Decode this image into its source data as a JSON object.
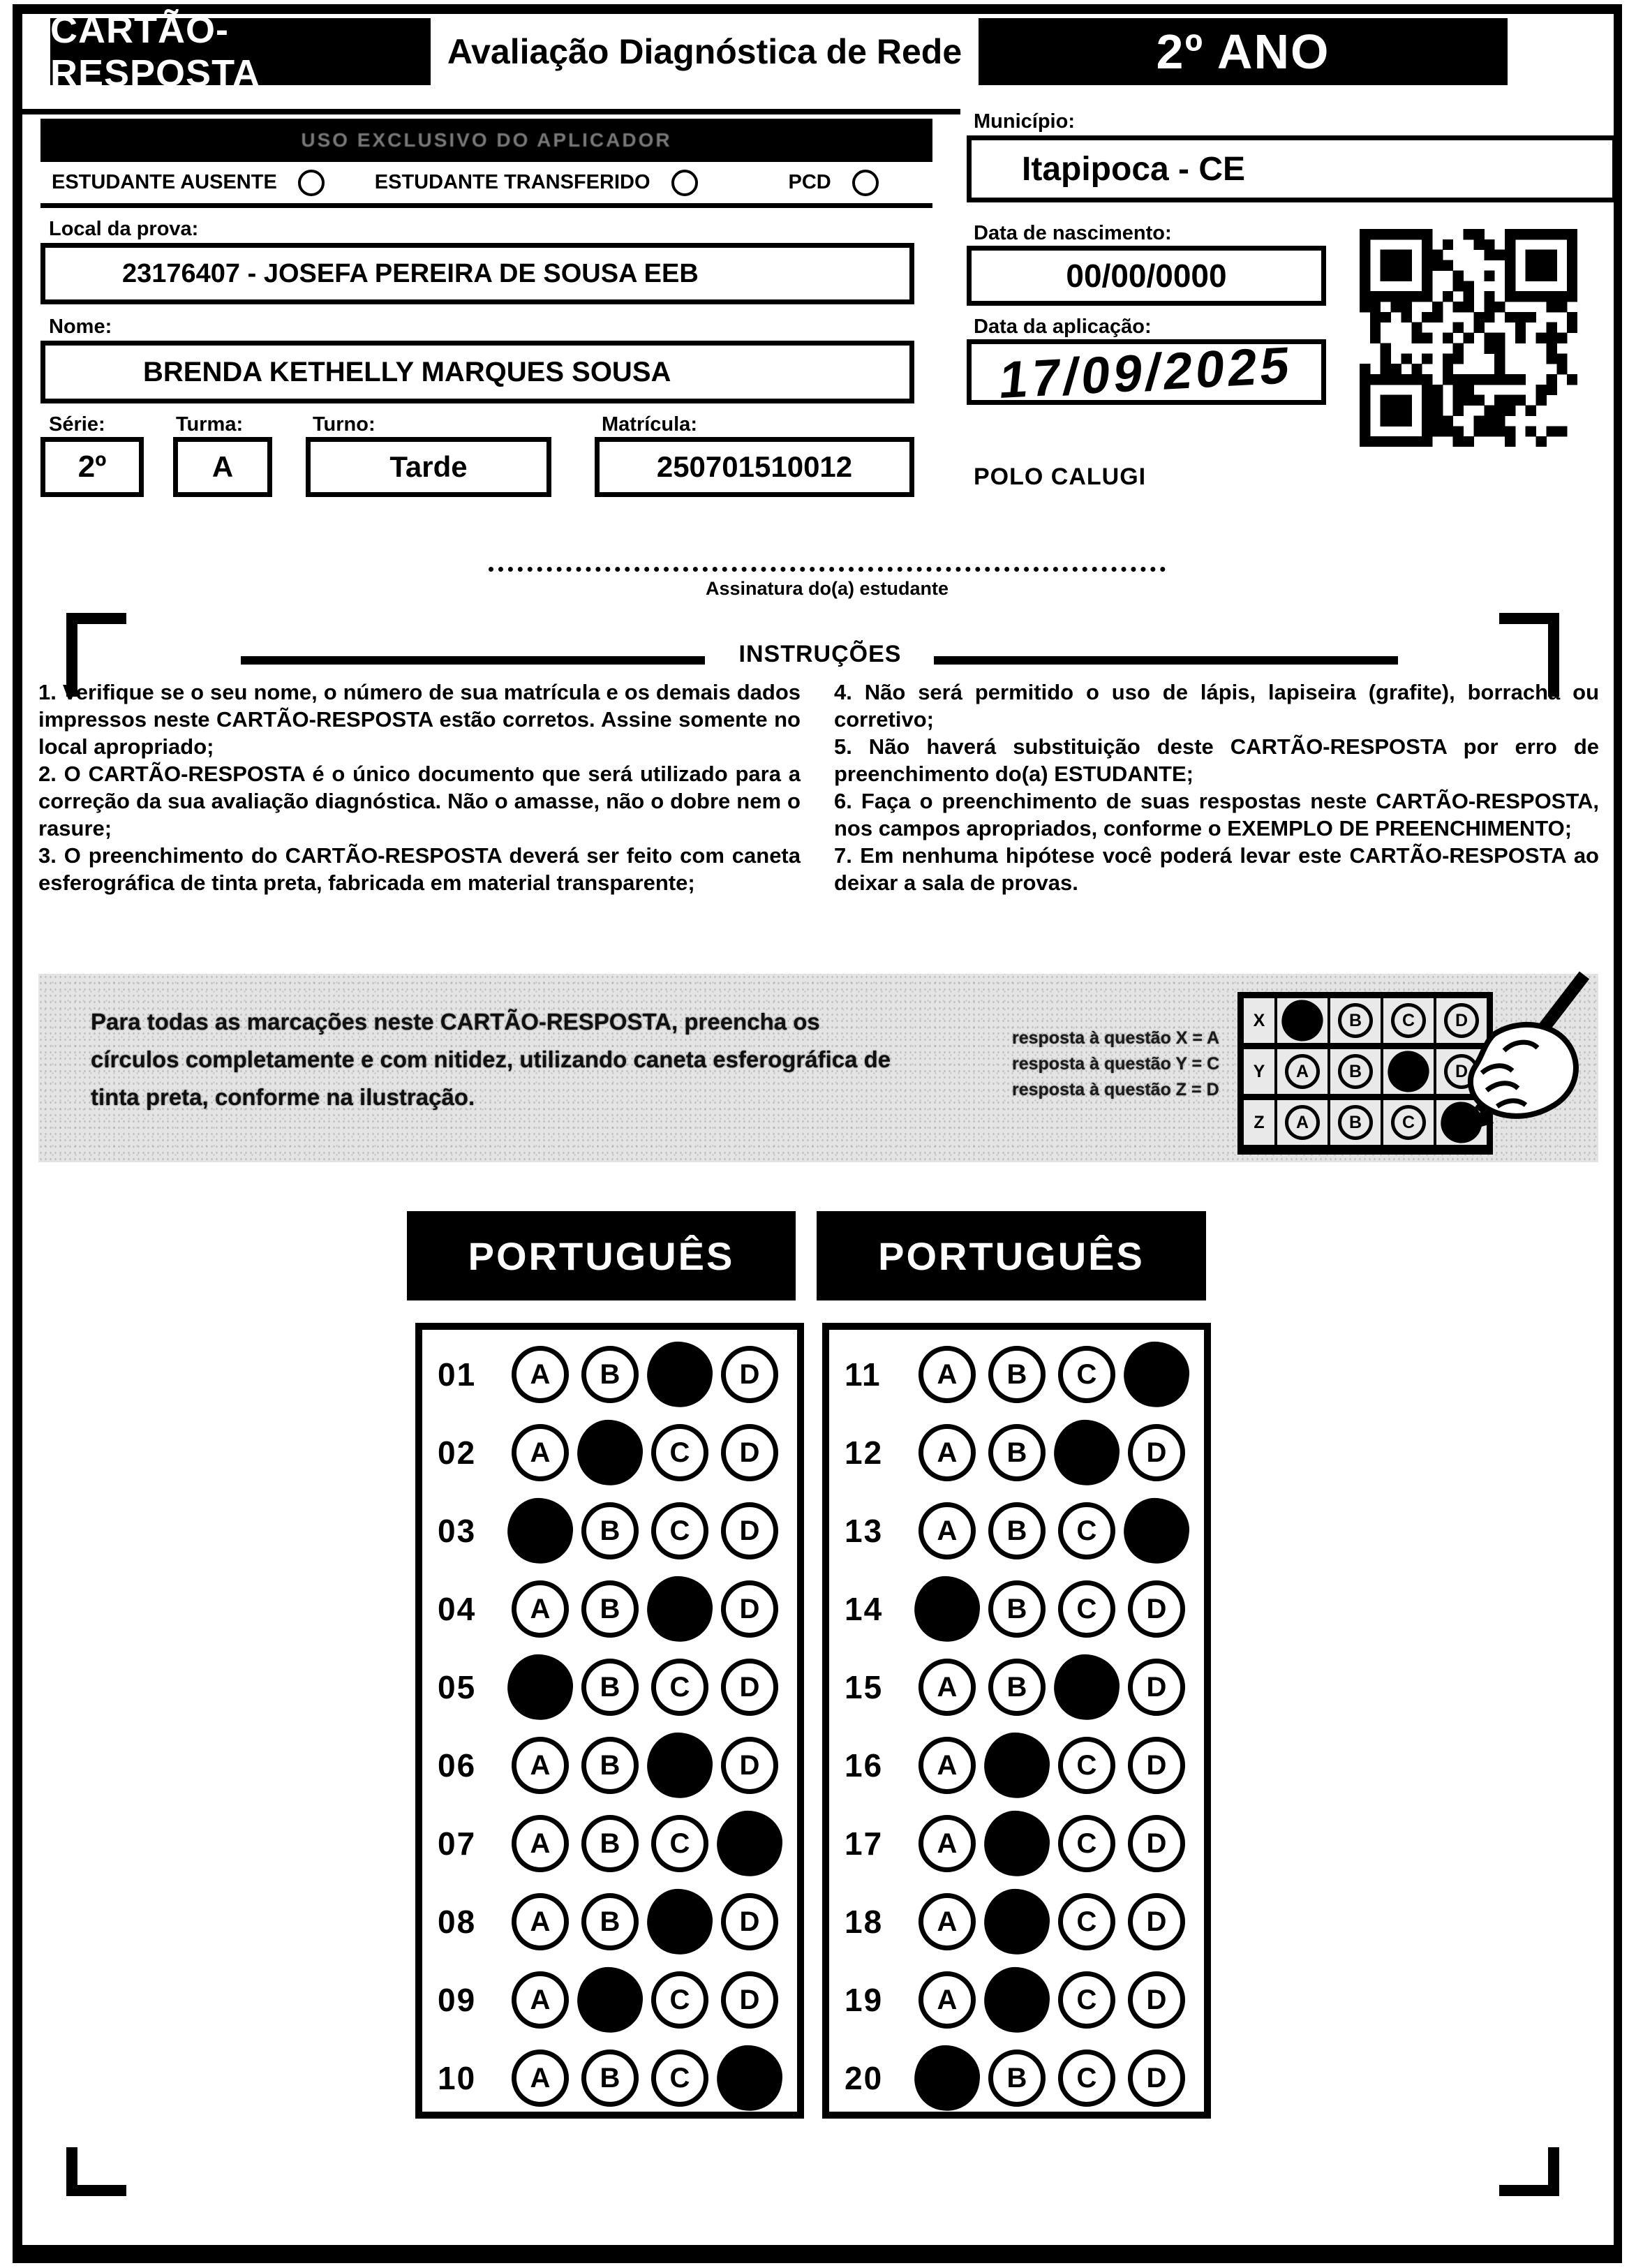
{
  "header": {
    "left": "CARTÃO-RESPOSTA",
    "center": "Avaliação Diagnóstica de Rede",
    "right": "2º ANO"
  },
  "applicator": {
    "bar_label": "USO EXCLUSIVO DO APLICADOR",
    "options": [
      {
        "label": "ESTUDANTE AUSENTE"
      },
      {
        "label": "ESTUDANTE TRANSFERIDO"
      },
      {
        "label": "PCD"
      }
    ]
  },
  "fields": {
    "local_label": "Local da prova:",
    "local_value": "23176407 - JOSEFA PEREIRA DE SOUSA EEB",
    "nome_label": "Nome:",
    "nome_value": "BRENDA KETHELLY MARQUES SOUSA",
    "serie_label": "Série:",
    "serie_value": "2º",
    "turma_label": "Turma:",
    "turma_value": "A",
    "turno_label": "Turno:",
    "turno_value": "Tarde",
    "matricula_label": "Matrícula:",
    "matricula_value": "250701510012",
    "municipio_label": "Município:",
    "municipio_value": "Itapipoca - CE",
    "nascimento_label": "Data de nascimento:",
    "nascimento_value": "00/00/0000",
    "aplicacao_label": "Data da aplicação:",
    "aplicacao_value": "17/09/2025",
    "polo": "POLO CALUGI"
  },
  "signature": {
    "label": "Assinatura do(a) estudante"
  },
  "instructions": {
    "title": "INSTRUÇÕES",
    "left": [
      "1. Verifique se o seu nome, o número de sua matrícula e os demais dados impressos neste CARTÃO-RESPOSTA estão corretos. Assine somente no local apropriado;",
      "2. O CARTÃO-RESPOSTA é o único documento que será utilizado para a correção da sua avaliação diagnóstica. Não o amasse, não o dobre nem o rasure;",
      "3. O preenchimento do CARTÃO-RESPOSTA deverá ser feito com caneta esferográfica de tinta preta, fabricada em material transparente;"
    ],
    "right": [
      "4. Não será permitido o uso de lápis, lapiseira (grafite), borracha ou corretivo;",
      "5. Não haverá substituição deste CARTÃO-RESPOSTA por erro de preenchimento do(a) ESTUDANTE;",
      "6. Faça o preenchimento de suas respostas neste CARTÃO-RESPOSTA, nos campos apropriados, conforme o EXEMPLO DE PREENCHIMENTO;",
      "7. Em nenhuma hipótese você poderá levar este CARTÃO-RESPOSTA ao deixar a sala de provas."
    ]
  },
  "example": {
    "text": "Para todas as marcações neste CARTÃO-RESPOSTA, preencha os círculos completamente e com nitidez, utilizando caneta esferográfica de tinta preta, conforme na ilustração.",
    "answers_note": [
      "resposta à questão X = A",
      "resposta à questão Y = C",
      "resposta à questão Z = D"
    ],
    "grid": {
      "options": [
        "A",
        "B",
        "C",
        "D"
      ],
      "rows": [
        {
          "label": "X",
          "filled": "A"
        },
        {
          "label": "Y",
          "filled": "C"
        },
        {
          "label": "Z",
          "filled": "D"
        }
      ]
    }
  },
  "options": [
    "A",
    "B",
    "C",
    "D"
  ],
  "sections": [
    {
      "title": "PORTUGUÊS",
      "questions": [
        {
          "num": "01",
          "filled": "C"
        },
        {
          "num": "02",
          "filled": "B"
        },
        {
          "num": "03",
          "filled": "A"
        },
        {
          "num": "04",
          "filled": "C"
        },
        {
          "num": "05",
          "filled": "A"
        },
        {
          "num": "06",
          "filled": "C"
        },
        {
          "num": "07",
          "filled": "D"
        },
        {
          "num": "08",
          "filled": "C"
        },
        {
          "num": "09",
          "filled": "B"
        },
        {
          "num": "10",
          "filled": "D"
        }
      ]
    },
    {
      "title": "PORTUGUÊS",
      "questions": [
        {
          "num": "11",
          "filled": "D"
        },
        {
          "num": "12",
          "filled": "C"
        },
        {
          "num": "13",
          "filled": "D"
        },
        {
          "num": "14",
          "filled": "A"
        },
        {
          "num": "15",
          "filled": "C"
        },
        {
          "num": "16",
          "filled": "B"
        },
        {
          "num": "17",
          "filled": "B"
        },
        {
          "num": "18",
          "filled": "B"
        },
        {
          "num": "19",
          "filled": "B"
        },
        {
          "num": "20",
          "filled": "A"
        }
      ]
    }
  ]
}
